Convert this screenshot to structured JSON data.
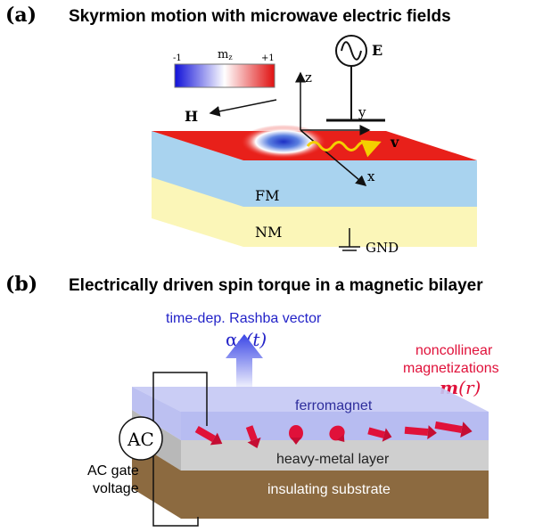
{
  "panel_a": {
    "letter": "(a)",
    "title": "Skyrmion motion with microwave electric fields",
    "colorbar": {
      "min": "-1",
      "max": "+1",
      "label": "m",
      "label_sub": "z"
    },
    "labels": {
      "E": "E",
      "z": "z",
      "y": "y",
      "x": "x",
      "v": "v",
      "H": "H",
      "FM": "FM",
      "NM": "NM",
      "GND": "GND"
    }
  },
  "panel_b": {
    "letter": "(b)",
    "title": "Electrically driven spin torque in a magnetic bilayer",
    "labels": {
      "rashba_caption": "time-dep. Rashba vector",
      "rashba_symbol": "α",
      "rashba_sub": "R",
      "rashba_arg": "(t)",
      "noncollinear_1": "noncollinear",
      "noncollinear_2": "magnetizations",
      "m_symbol": "m",
      "m_arg": "(r)",
      "ferromagnet": "ferromagnet",
      "heavy_metal": "heavy-metal layer",
      "substrate": "insulating substrate",
      "ac": "AC",
      "ac_gate_1": "AC gate",
      "ac_gate_2": "voltage"
    }
  },
  "colors": {
    "red_layer": "#e8201a",
    "fm_blue": "#a9d3ef",
    "nm_yellow": "#fbf6b8",
    "rashba_text": "#2323c8",
    "arrow_red": "#e0113a",
    "noncollinear_text": "#e0113a",
    "ferromagnet_text": "#2e2e9c",
    "gray_layer": "#c9c9c9",
    "brown_layer": "#8c6a40"
  }
}
